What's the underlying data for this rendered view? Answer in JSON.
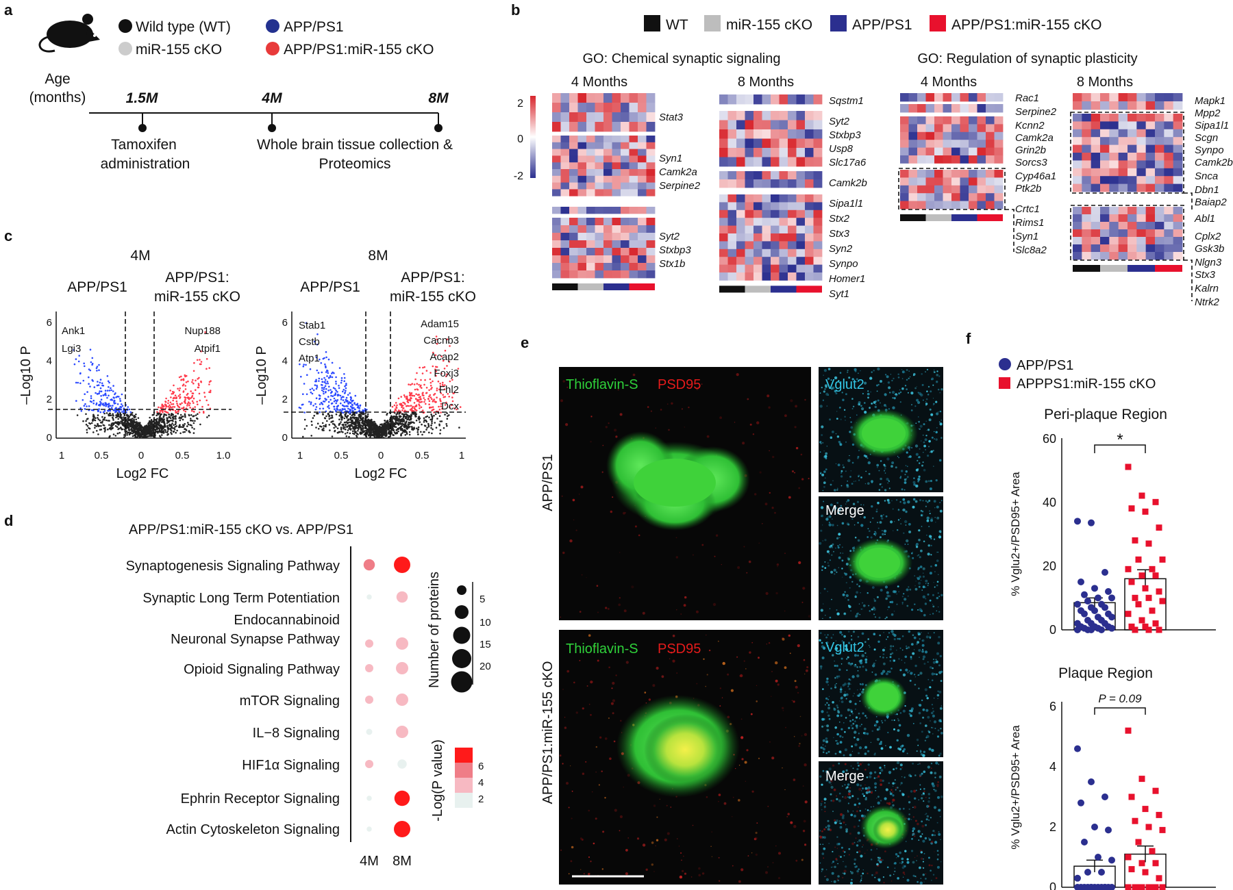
{
  "panel_letters": [
    "a",
    "b",
    "c",
    "d",
    "e",
    "f"
  ],
  "a": {
    "legend": [
      "Wild type (WT)",
      "miR-155 cKO",
      "APP/PS1",
      "APP/PS1:miR-155 cKO"
    ],
    "legend_colors": [
      "#111111",
      "#cccccc",
      "#23318f",
      "#e83a3a"
    ],
    "age_label": [
      "Age",
      "(months)"
    ],
    "ticks": [
      "1.5M",
      "4M",
      "8M"
    ],
    "events": [
      [
        "Tamoxifen",
        "administration"
      ],
      [
        "Whole brain tissue collection &",
        "Proteomics"
      ]
    ]
  },
  "b": {
    "legend": [
      "WT",
      "miR-155 cKO",
      "APP/PS1",
      "APP/PS1:miR-155 cKO"
    ],
    "legend_colors": [
      "#111111",
      "#bdbdbd",
      "#2b2f8f",
      "#e8112d"
    ],
    "go_titles": [
      "GO: Chemical synaptic signaling",
      "GO: Regulation of synaptic plasticity"
    ],
    "month_titles": [
      "4 Months",
      "8 Months",
      "4 Months",
      "8 Months"
    ],
    "scale_ticks": [
      "2",
      "0",
      "-2"
    ],
    "genes_m1": [
      "Stat3",
      "Syn1",
      "Camk2a",
      "Serpine2",
      "Syt2",
      "Stxbp3",
      "Stx1b"
    ],
    "genes_m2": [
      "Sqstm1",
      "Syt2",
      "Stxbp3",
      "Usp8",
      "Slc17a6",
      "Camk2b",
      "Sipa1l1",
      "Stx2",
      "Stx3",
      "Syn2",
      "Synpo",
      "Homer1",
      "Syt1"
    ],
    "genes_m3": [
      "Rac1",
      "Serpine2",
      "Kcnn2",
      "Camk2a",
      "Grin2b",
      "Sorcs3",
      "Cyp46a1",
      "Ptk2b",
      "Crtc1",
      "Rims1",
      "Syn1",
      "Slc8a2"
    ],
    "genes_m4": [
      "Mapk1",
      "Mpp2",
      "Sipa1l1",
      "Scgn",
      "Synpo",
      "Camk2b",
      "Snca",
      "Dbn1",
      "Baiap2",
      "Abl1",
      "Cplx2",
      "Gsk3b",
      "Nlgn3",
      "Stx3",
      "Kalrn",
      "Ntrk2"
    ]
  },
  "c": {
    "titles": [
      "4M",
      "8M"
    ],
    "left_group": "APP/PS1",
    "right_group": [
      "APP/PS1:",
      "miR-155 cKO"
    ],
    "ylabel": "–Log10 P",
    "xlabel": "Log2 FC",
    "plot1_labels_left": [
      "Ank1",
      "Lgi3"
    ],
    "plot1_labels_right": [
      "Nup188",
      "Atpif1"
    ],
    "plot2_labels_left": [
      "Stab1",
      "Cstb",
      "Atp1"
    ],
    "plot2_labels_right": [
      "Adam15",
      "Cacnb3",
      "Acap2",
      "Foxj3",
      "Fhl2",
      "Dcx"
    ],
    "plot1_xticks": [
      "1",
      "0.5",
      "0",
      "0.5",
      "1.0"
    ],
    "plot2_xticks": [
      "1",
      "0.5",
      "0",
      "0.5",
      "1"
    ],
    "yticks": [
      "0",
      "2",
      "4",
      "6"
    ]
  },
  "d": {
    "title": "APP/PS1:miR-155 cKO vs. APP/PS1",
    "pathways": [
      [
        "Synaptogenesis Signaling Pathway"
      ],
      [
        "Synaptic Long Term Potentiation"
      ],
      [
        "Endocannabinoid",
        "Neuronal Synapse Pathway"
      ],
      [
        "Opioid Signaling Pathway"
      ],
      [
        "mTOR Signaling"
      ],
      [
        "IL−8 Signaling"
      ],
      [
        "HIF1α Signaling"
      ],
      [
        "Ephrin Receptor Signaling"
      ],
      [
        "Actin Cytoskeleton Signaling"
      ]
    ],
    "columns": [
      "4M",
      "8M"
    ],
    "size_legend_title": "Number of proteins",
    "size_ticks": [
      "5",
      "10",
      "15",
      "20"
    ],
    "color_legend_title": "-Log(P value)",
    "color_ticks": [
      "6",
      "4",
      "2"
    ],
    "color_scale": [
      "#e8f1ef",
      "#f7b9c2",
      "#ef7d87",
      "#ff1a1a"
    ]
  },
  "e": {
    "row_labels": [
      "APP/PS1",
      "APP/PS1:miR-155 cKO"
    ],
    "stain_green": "Thioflavin-S",
    "stain_red": "PSD95",
    "stain_cyan": "Vglut2",
    "merge": "Merge"
  },
  "f": {
    "legend": [
      "APP/PS1",
      "APPPS1:miR-155 cKO"
    ],
    "legend_colors": [
      "#2b2f8f",
      "#e8112d"
    ],
    "title_top": "Peri-plaque Region",
    "title_bottom": "Plaque Region",
    "sig_top": "*",
    "sig_bottom": "P = 0.09",
    "ylabel": "% Vglu2+/PSD95+ Area",
    "yticks_top": [
      "0",
      "20",
      "40",
      "60"
    ],
    "yticks_bottom": [
      "0",
      "2",
      "4",
      "6"
    ]
  },
  "chart_data": [
    {
      "type": "heatmap",
      "title": "GO: Chemical synaptic signaling — 4 Months",
      "groups": [
        "WT",
        "miR-155 cKO",
        "APP/PS1",
        "APP/PS1:miR-155 cKO"
      ],
      "color_range": [
        -2,
        2
      ],
      "row_labels": [
        "Stat3",
        "Syn1",
        "Camk2a",
        "Serpine2",
        "Syt2",
        "Stxbp3",
        "Stx1b"
      ]
    },
    {
      "type": "heatmap",
      "title": "GO: Chemical synaptic signaling — 8 Months",
      "groups": [
        "WT",
        "miR-155 cKO",
        "APP/PS1",
        "APP/PS1:miR-155 cKO"
      ],
      "color_range": [
        -2,
        2
      ],
      "row_labels": [
        "Sqstm1",
        "Syt2",
        "Stxbp3",
        "Usp8",
        "Slc17a6",
        "Camk2b",
        "Sipa1l1",
        "Stx2",
        "Stx3",
        "Syn2",
        "Synpo",
        "Homer1",
        "Syt1"
      ]
    },
    {
      "type": "heatmap",
      "title": "GO: Regulation of synaptic plasticity — 4 Months",
      "groups": [
        "WT",
        "miR-155 cKO",
        "APP/PS1",
        "APP/PS1:miR-155 cKO"
      ],
      "color_range": [
        -2,
        2
      ],
      "row_labels": [
        "Rac1",
        "Serpine2",
        "Kcnn2",
        "Camk2a",
        "Grin2b",
        "Sorcs3",
        "Cyp46a1",
        "Ptk2b",
        "Crtc1",
        "Rims1",
        "Syn1",
        "Slc8a2"
      ]
    },
    {
      "type": "heatmap",
      "title": "GO: Regulation of synaptic plasticity — 8 Months",
      "groups": [
        "WT",
        "miR-155 cKO",
        "APP/PS1",
        "APP/PS1:miR-155 cKO"
      ],
      "color_range": [
        -2,
        2
      ],
      "row_labels": [
        "Mapk1",
        "Mpp2",
        "Sipa1l1",
        "Scgn",
        "Synpo",
        "Camk2b",
        "Snca",
        "Dbn1",
        "Baiap2",
        "Abl1",
        "Cplx2",
        "Gsk3b",
        "Nlgn3",
        "Stx3",
        "Kalrn",
        "Ntrk2"
      ]
    },
    {
      "type": "scatter",
      "title": "4M",
      "xlabel": "Log2 FC",
      "ylabel": "-Log10 P",
      "xlim": [
        -1,
        1.1
      ],
      "ylim": [
        0,
        6.5
      ],
      "thresholds": {
        "x": [
          -0.15,
          0.15
        ],
        "y": 1.3
      }
    },
    {
      "type": "scatter",
      "title": "8M",
      "xlabel": "Log2 FC",
      "ylabel": "-Log10 P",
      "xlim": [
        -1,
        1.1
      ],
      "ylim": [
        0,
        6.5
      ],
      "thresholds": {
        "x": [
          -0.15,
          0.15
        ],
        "y": 1.3
      }
    },
    {
      "type": "scatter",
      "title": "APP/PS1:miR-155 cKO vs. APP/PS1",
      "categories": [
        "Synaptogenesis Signaling Pathway",
        "Synaptic Long Term Potentiation",
        "Endocannabinoid Neuronal Synapse Pathway",
        "Opioid Signaling Pathway",
        "mTOR Signaling",
        "IL-8 Signaling",
        "HIF1α Signaling",
        "Ephrin Receptor Signaling",
        "Actin Cytoskeleton Signaling"
      ],
      "series": [
        {
          "name": "4M",
          "neg_log_p": [
            4.5,
            1,
            2.5,
            2.5,
            2.5,
            1,
            3,
            1,
            1
          ],
          "size": [
            11,
            5,
            8,
            8,
            8,
            6,
            8,
            5,
            5
          ]
        },
        {
          "name": "8M",
          "neg_log_p": [
            6.5,
            2.5,
            2.5,
            2.5,
            2.5,
            2.5,
            1,
            6.5,
            6.5
          ],
          "size": [
            16,
            11,
            12,
            12,
            12,
            12,
            9,
            15,
            16
          ]
        }
      ]
    },
    {
      "type": "bar",
      "title": "Peri-plaque Region",
      "categories": [
        "APP/PS1",
        "APPPS1:miR-155 cKO"
      ],
      "values": [
        8.5,
        16
      ],
      "sem": [
        1.5,
        2.8
      ],
      "ylabel": "% Vglu2+/PSD95+ Area",
      "ylim": [
        0,
        60
      ],
      "points": [
        [
          34,
          33.5,
          18,
          15,
          13,
          12,
          11,
          10,
          10,
          9,
          8,
          8,
          7,
          7,
          6,
          6,
          5,
          5,
          4,
          4,
          3,
          3,
          2,
          2,
          2,
          1,
          1,
          1,
          0.5,
          0.5,
          0.5,
          0,
          0,
          0,
          0
        ],
        [
          51,
          42,
          40,
          38,
          37,
          32,
          28,
          27,
          22,
          22,
          19,
          19,
          17,
          17,
          15,
          13,
          12,
          10,
          10,
          9,
          8,
          6,
          5,
          3,
          2,
          1,
          1,
          0,
          0,
          0
        ]
      ]
    },
    {
      "type": "bar",
      "title": "Plaque Region",
      "categories": [
        "APP/PS1",
        "APPPS1:miR-155 cKO"
      ],
      "values": [
        0.7,
        1.1
      ],
      "sem": [
        0.2,
        0.27
      ],
      "ylabel": "% Vglu2+/PSD95+ Area",
      "ylim": [
        0,
        6
      ],
      "points": [
        [
          4.6,
          3.5,
          3,
          2.8,
          2,
          1.9,
          1.5,
          1,
          0.9,
          0.5,
          0.5,
          0.3,
          0,
          0,
          0,
          0,
          0,
          0,
          0,
          0,
          0,
          0,
          0,
          0,
          0
        ],
        [
          5.2,
          3.6,
          3.2,
          3,
          2.6,
          2.4,
          2.2,
          2,
          1.9,
          1.5,
          1.2,
          1,
          0.8,
          0.8,
          0.6,
          0.5,
          0.3,
          0,
          0,
          0,
          0,
          0,
          0,
          0,
          0
        ]
      ]
    }
  ]
}
